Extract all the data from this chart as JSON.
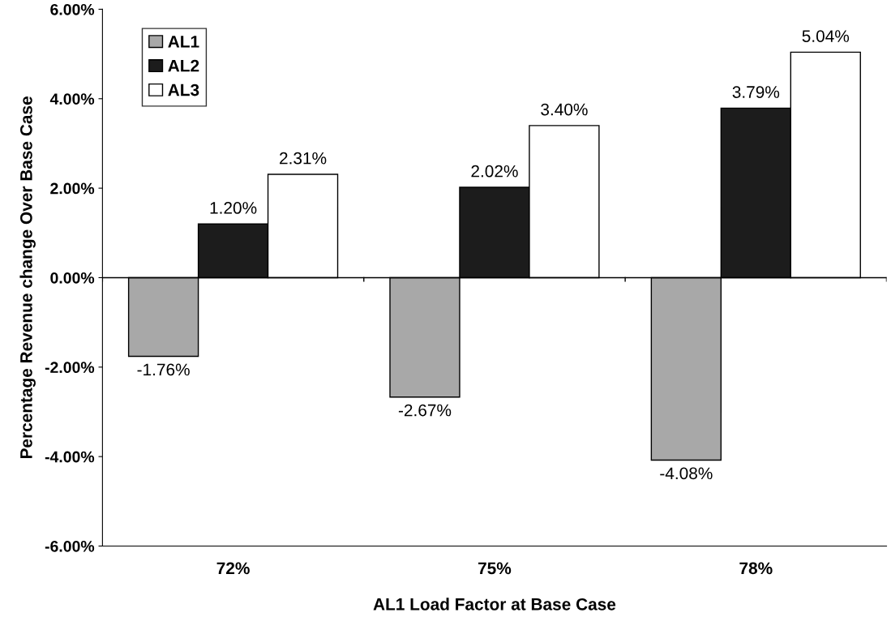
{
  "chart_data": {
    "type": "bar",
    "xlabel": "AL1 Load Factor at Base Case",
    "ylabel": "Percentage Revenue change Over Base Case",
    "categories": [
      "72%",
      "75%",
      "78%"
    ],
    "series": [
      {
        "name": "AL1",
        "color": "#a8a8a8",
        "values": [
          -1.76,
          -2.67,
          -4.08
        ],
        "value_labels": [
          "-1.76%",
          "-2.67%",
          "-4.08%"
        ]
      },
      {
        "name": "AL2",
        "color": "#1c1c1c",
        "values": [
          1.2,
          2.02,
          3.79
        ],
        "value_labels": [
          "1.20%",
          "2.02%",
          "3.79%"
        ]
      },
      {
        "name": "AL3",
        "color": "#ffffff",
        "values": [
          2.31,
          3.4,
          5.04
        ],
        "value_labels": [
          "2.31%",
          "3.40%",
          "5.04%"
        ]
      }
    ],
    "ylim": [
      -6,
      6
    ],
    "yticks": [
      {
        "value": -6,
        "label": "-6.00%"
      },
      {
        "value": -4,
        "label": "-4.00%"
      },
      {
        "value": -2,
        "label": "-2.00%"
      },
      {
        "value": 0,
        "label": "0.00%"
      },
      {
        "value": 2,
        "label": "2.00%"
      },
      {
        "value": 4,
        "label": "4.00%"
      },
      {
        "value": 6,
        "label": "6.00%"
      }
    ],
    "ref_lines": [
      {
        "axis": "y",
        "value": 0,
        "color": "#000000"
      }
    ],
    "grid": false,
    "legend": "top left"
  }
}
